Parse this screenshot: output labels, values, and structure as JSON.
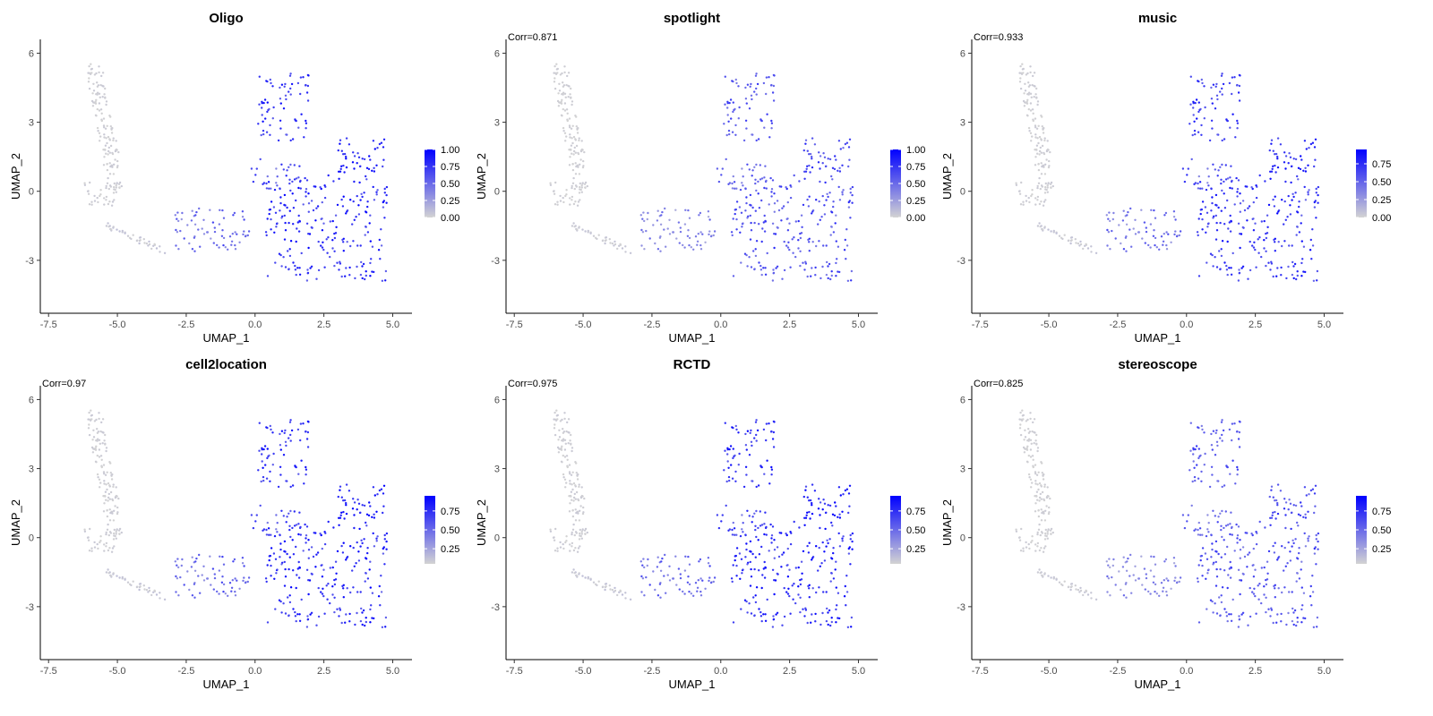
{
  "chart_data": {
    "type": "scatter",
    "x_label": "UMAP_1",
    "y_label": "UMAP_2",
    "x_ticks": [
      "-7.5",
      "-5.0",
      "-2.5",
      "0.0",
      "2.5",
      "5.0"
    ],
    "x_tick_values": [
      -7.5,
      -5.0,
      -2.5,
      0.0,
      2.5,
      5.0
    ],
    "y_ticks": [
      "-3",
      "0",
      "3",
      "6"
    ],
    "y_tick_values": [
      -3,
      0,
      3,
      6
    ],
    "xlim": [
      -7.8,
      5.7
    ],
    "ylim": [
      -5.3,
      6.6
    ],
    "color_scale": {
      "low": "#d3d3d3",
      "high": "#0000ff"
    },
    "grid": false,
    "legend_position": "right",
    "panels": [
      {
        "title": "Oligo",
        "corr": "",
        "legend_ticks": [
          "1.00",
          "0.75",
          "0.50",
          "0.25",
          "0.00"
        ],
        "legend_values": [
          1.0,
          0.75,
          0.5,
          0.25,
          0.0
        ],
        "legend_max": 1.0,
        "intensity": 1.0
      },
      {
        "title": "spotlight",
        "corr": "Corr=0.871",
        "legend_ticks": [
          "1.00",
          "0.75",
          "0.50",
          "0.25",
          "0.00"
        ],
        "legend_values": [
          1.0,
          0.75,
          0.5,
          0.25,
          0.0
        ],
        "legend_max": 1.0,
        "intensity": 0.78
      },
      {
        "title": "music",
        "corr": "Corr=0.933",
        "legend_ticks": [
          "0.75",
          "0.50",
          "0.25",
          "0.00"
        ],
        "legend_values": [
          0.75,
          0.5,
          0.25,
          0.0
        ],
        "legend_max": 0.95,
        "intensity": 0.9
      },
      {
        "title": "cell2location",
        "corr": "Corr=0.97",
        "legend_ticks": [
          "0.75",
          "0.50",
          "0.25"
        ],
        "legend_values": [
          0.75,
          0.5,
          0.25
        ],
        "legend_max": 0.95,
        "legend_min": 0.05,
        "intensity": 0.97
      },
      {
        "title": "RCTD",
        "corr": "Corr=0.975",
        "legend_ticks": [
          "0.75",
          "0.50",
          "0.25"
        ],
        "legend_values": [
          0.75,
          0.5,
          0.25
        ],
        "legend_max": 0.95,
        "legend_min": 0.05,
        "intensity": 0.97
      },
      {
        "title": "stereoscope",
        "corr": "Corr=0.825",
        "legend_ticks": [
          "0.75",
          "0.50",
          "0.25"
        ],
        "legend_values": [
          0.75,
          0.5,
          0.25
        ],
        "legend_max": 0.95,
        "legend_min": 0.05,
        "intensity": 0.72
      }
    ]
  }
}
